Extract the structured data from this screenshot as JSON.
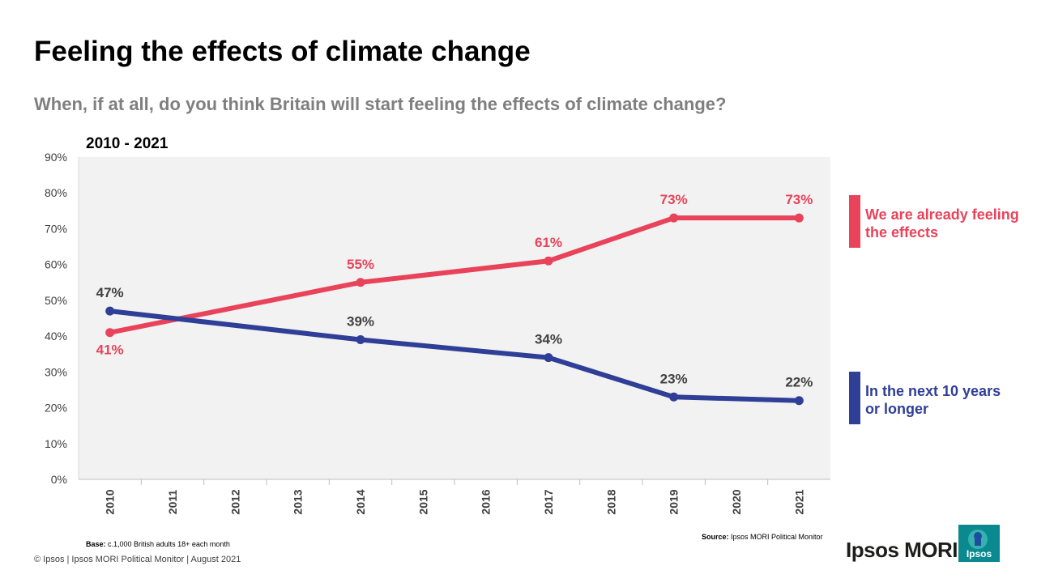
{
  "title": "Feeling the effects of climate change",
  "subtitle": "When, if at all, do you think Britain will start feeling the effects of climate change?",
  "period_label": "2010 - 2021",
  "chart_data": {
    "type": "line",
    "categories": [
      "2010",
      "2011",
      "2012",
      "2013",
      "2014",
      "2015",
      "2016",
      "2017",
      "2018",
      "2019",
      "2020",
      "2021"
    ],
    "ylim": [
      0,
      90
    ],
    "yticks": [
      0,
      10,
      20,
      30,
      40,
      50,
      60,
      70,
      80,
      90
    ],
    "ytick_labels": [
      "0%",
      "10%",
      "20%",
      "30%",
      "40%",
      "50%",
      "60%",
      "70%",
      "80%",
      "90%"
    ],
    "grid": false,
    "legend_position": "right",
    "series": [
      {
        "name": "We are already feeling the effects",
        "color": "#e8435a",
        "points": [
          {
            "x": "2010",
            "y": 41,
            "label": "41%"
          },
          {
            "x": "2014",
            "y": 55,
            "label": "55%"
          },
          {
            "x": "2017",
            "y": 61,
            "label": "61%"
          },
          {
            "x": "2019",
            "y": 73,
            "label": "73%"
          },
          {
            "x": "2021",
            "y": 73,
            "label": "73%"
          }
        ]
      },
      {
        "name": "In the next 10 years or longer",
        "color": "#2f3e96",
        "points": [
          {
            "x": "2010",
            "y": 47,
            "label": "47%"
          },
          {
            "x": "2014",
            "y": 39,
            "label": "39%"
          },
          {
            "x": "2017",
            "y": 34,
            "label": "34%"
          },
          {
            "x": "2019",
            "y": 23,
            "label": "23%"
          },
          {
            "x": "2021",
            "y": 22,
            "label": "22%"
          }
        ]
      }
    ]
  },
  "legend": {
    "red_label": "We are already feeling the effects",
    "blue_label": "In the next 10 years or longer"
  },
  "base_note": {
    "label": "Base:",
    "text": "c.1,000 British adults 18+ each month"
  },
  "source_note": {
    "label": "Source:",
    "text": "Ipsos MORI Political Monitor"
  },
  "footer": "© Ipsos | Ipsos MORI Political Monitor | August 2021",
  "logo": {
    "wordmark": "Ipsos MORI",
    "badge_text": "Ipsos",
    "badge_color": "#0a8a8f"
  }
}
